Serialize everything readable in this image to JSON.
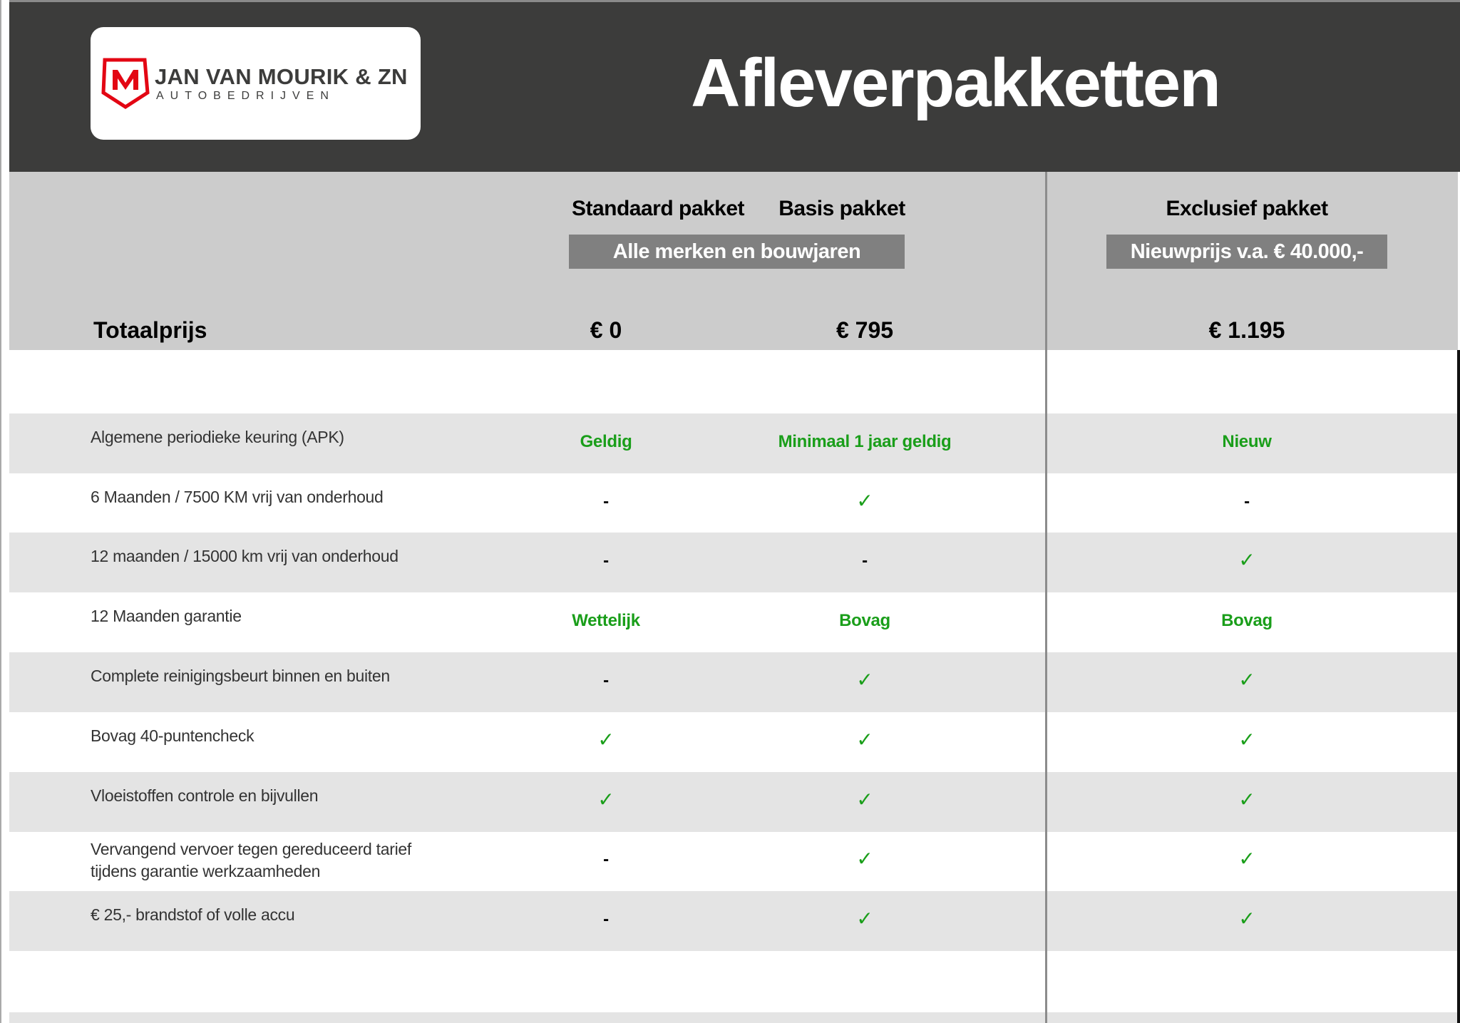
{
  "header": {
    "logo": {
      "name": "JAN VAN MOURIK & ZN",
      "subtitle": "AUTOBEDRIJVEN",
      "brand_color": "#e30613"
    },
    "title": "Afleverpakketten"
  },
  "packages": [
    {
      "name": "Standaard pakket",
      "price": "€ 0"
    },
    {
      "name": "Basis pakket",
      "price": "€ 795"
    },
    {
      "name": "Exclusief pakket",
      "price": "€ 1.195"
    }
  ],
  "banners": {
    "standard_basic": "Alle merken en bouwjaren",
    "exclusive": "Nieuwprijs v.a. € 40.000,-"
  },
  "total_label": "Totaalprijs",
  "colors": {
    "header_bg": "#3c3c3b",
    "value_green": "#1a9e1a",
    "banner_bg": "#808080"
  },
  "rows": [
    {
      "label": "Algemene periodieke keuring (APK)",
      "values": [
        "Geldig",
        "Minimaal 1 jaar geldig",
        "Nieuw"
      ]
    },
    {
      "label": "6 Maanden / 7500 KM vrij van onderhoud",
      "values": [
        "-",
        "✓",
        "-"
      ]
    },
    {
      "label": "12 maanden / 15000 km vrij van onderhoud",
      "values": [
        "-",
        "-",
        "✓"
      ]
    },
    {
      "label": "12 Maanden  garantie",
      "values": [
        "Wettelijk",
        "Bovag",
        "Bovag"
      ]
    },
    {
      "label": "Complete reinigingsbeurt binnen en buiten",
      "values": [
        "-",
        "✓",
        "✓"
      ]
    },
    {
      "label": "Bovag 40-puntencheck",
      "values": [
        "✓",
        "✓",
        "✓"
      ]
    },
    {
      "label": "Vloeistoffen controle en bijvullen",
      "values": [
        "✓",
        "✓",
        "✓"
      ]
    },
    {
      "label": "Vervangend vervoer tegen gereduceerd tarief tijdens garantie werkzaamheden",
      "values": [
        "-",
        "✓",
        "✓"
      ]
    },
    {
      "label": "€ 25,- brandstof of  volle accu",
      "values": [
        "-",
        "✓",
        "✓"
      ]
    }
  ]
}
